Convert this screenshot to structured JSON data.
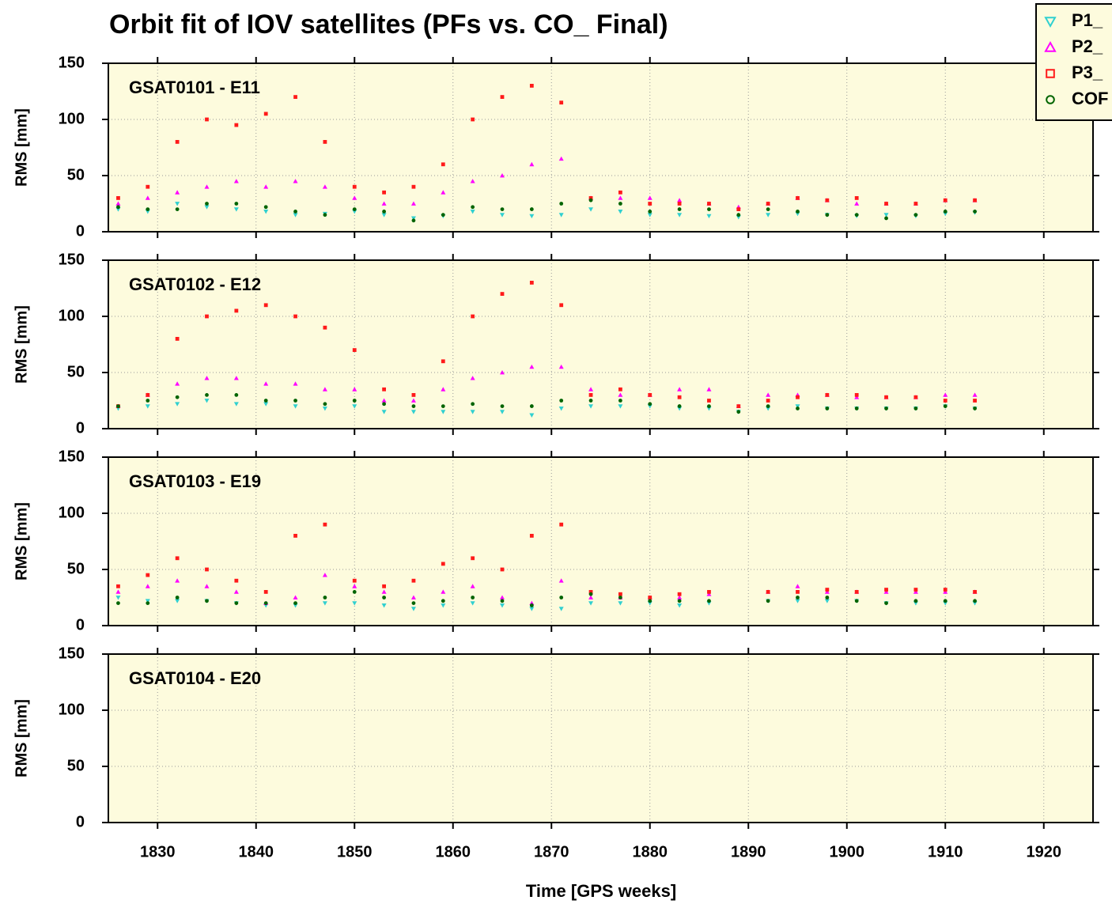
{
  "chart_data": [
    {
      "type": "scatter",
      "title": "Orbit fit of IOV satellites (PFs vs. CO_ Final)",
      "annotation": "GSAT0101 - E11",
      "ylabel": "RMS [mm]",
      "legend": "upper right",
      "grid": true,
      "xlim": [
        1825,
        1925
      ],
      "ylim": [
        0,
        150
      ],
      "xticks": [
        1830,
        1840,
        1850,
        1860,
        1870,
        1880,
        1890,
        1900,
        1910,
        1920
      ],
      "yticks": [
        0,
        50,
        100,
        150
      ],
      "x": [
        1826,
        1829,
        1832,
        1835,
        1838,
        1841,
        1844,
        1847,
        1850,
        1853,
        1856,
        1859,
        1862,
        1865,
        1868,
        1871,
        1874,
        1877,
        1880,
        1883,
        1886,
        1889,
        1892,
        1895,
        1898,
        1901,
        1904,
        1907,
        1910,
        1913
      ],
      "series": [
        {
          "name": "P1_",
          "color": "#30d0d0",
          "marker": "triangle-down",
          "values": [
            20,
            18,
            25,
            22,
            20,
            18,
            15,
            16,
            18,
            15,
            12,
            14,
            18,
            15,
            14,
            15,
            20,
            18,
            15,
            15,
            14,
            13,
            15,
            16,
            15,
            14,
            15,
            14,
            16,
            17
          ]
        },
        {
          "name": "P2_",
          "color": "#ff00ff",
          "marker": "triangle-up",
          "values": [
            25,
            30,
            35,
            40,
            45,
            40,
            45,
            40,
            30,
            25,
            25,
            35,
            45,
            50,
            60,
            65,
            30,
            30,
            30,
            28,
            25,
            22,
            25,
            30,
            28,
            25,
            25,
            25,
            28,
            28
          ]
        },
        {
          "name": "P3_",
          "color": "#ff1a1a",
          "marker": "square",
          "values": [
            30,
            40,
            80,
            100,
            95,
            105,
            120,
            80,
            40,
            35,
            40,
            60,
            100,
            120,
            130,
            115,
            30,
            35,
            25,
            25,
            25,
            20,
            25,
            30,
            28,
            30,
            25,
            25,
            28,
            28
          ]
        },
        {
          "name": "COF",
          "color": "#006400",
          "marker": "circle",
          "values": [
            22,
            20,
            20,
            25,
            25,
            22,
            18,
            15,
            20,
            18,
            10,
            15,
            22,
            20,
            20,
            25,
            28,
            25,
            18,
            20,
            20,
            15,
            20,
            18,
            15,
            15,
            12,
            15,
            18,
            18
          ]
        }
      ]
    },
    {
      "type": "scatter",
      "annotation": "GSAT0102 - E12",
      "ylabel": "RMS [mm]",
      "grid": true,
      "xlim": [
        1825,
        1925
      ],
      "ylim": [
        0,
        150
      ],
      "xticks": [
        1830,
        1840,
        1850,
        1860,
        1870,
        1880,
        1890,
        1900,
        1910,
        1920
      ],
      "yticks": [
        0,
        50,
        100,
        150
      ],
      "x": [
        1826,
        1829,
        1832,
        1835,
        1838,
        1841,
        1844,
        1847,
        1850,
        1853,
        1856,
        1859,
        1862,
        1865,
        1868,
        1871,
        1874,
        1877,
        1880,
        1883,
        1886,
        1889,
        1892,
        1895,
        1898,
        1901,
        1904,
        1907,
        1910,
        1913
      ],
      "series": [
        {
          "color": "#30d0d0",
          "marker": "triangle-down",
          "values": [
            18,
            20,
            22,
            25,
            22,
            22,
            20,
            18,
            20,
            15,
            15,
            15,
            15,
            15,
            12,
            18,
            20,
            20,
            20,
            18,
            18,
            15,
            18,
            20,
            18,
            18,
            18,
            18,
            20,
            18
          ]
        },
        {
          "color": "#ff00ff",
          "marker": "triangle-up",
          "values": [
            20,
            30,
            40,
            45,
            45,
            40,
            40,
            35,
            35,
            25,
            25,
            35,
            45,
            50,
            55,
            55,
            35,
            30,
            30,
            35,
            35,
            20,
            30,
            30,
            30,
            28,
            28,
            28,
            30,
            30
          ]
        },
        {
          "color": "#ff1a1a",
          "marker": "square",
          "values": [
            20,
            30,
            80,
            100,
            105,
            110,
            100,
            90,
            70,
            35,
            30,
            60,
            100,
            120,
            130,
            110,
            30,
            35,
            30,
            28,
            25,
            20,
            25,
            28,
            30,
            30,
            28,
            28,
            25,
            25
          ]
        },
        {
          "color": "#006400",
          "marker": "circle",
          "values": [
            20,
            25,
            28,
            30,
            30,
            25,
            25,
            22,
            25,
            22,
            20,
            20,
            22,
            20,
            20,
            25,
            25,
            25,
            22,
            20,
            20,
            15,
            20,
            18,
            18,
            18,
            18,
            18,
            20,
            18
          ]
        }
      ]
    },
    {
      "type": "scatter",
      "annotation": "GSAT0103 - E19",
      "ylabel": "RMS [mm]",
      "grid": true,
      "xlim": [
        1825,
        1925
      ],
      "ylim": [
        0,
        150
      ],
      "xticks": [
        1830,
        1840,
        1850,
        1860,
        1870,
        1880,
        1890,
        1900,
        1910,
        1920
      ],
      "yticks": [
        0,
        50,
        100,
        150
      ],
      "x": [
        1826,
        1829,
        1832,
        1835,
        1838,
        1841,
        1844,
        1847,
        1850,
        1853,
        1856,
        1859,
        1862,
        1865,
        1868,
        1871,
        1874,
        1877,
        1880,
        1883,
        1886,
        1889,
        1892,
        1895,
        1898,
        1901,
        1904,
        1907,
        1910,
        1913
      ],
      "series": [
        {
          "color": "#30d0d0",
          "marker": "triangle-down",
          "values": [
            25,
            22,
            22,
            22,
            20,
            18,
            18,
            20,
            20,
            18,
            15,
            18,
            20,
            18,
            15,
            15,
            20,
            20,
            20,
            18,
            20,
            null,
            22,
            22,
            22,
            22,
            20,
            20,
            20,
            20
          ]
        },
        {
          "color": "#ff00ff",
          "marker": "triangle-up",
          "values": [
            30,
            35,
            40,
            35,
            30,
            20,
            25,
            45,
            35,
            30,
            25,
            30,
            35,
            25,
            20,
            40,
            25,
            25,
            25,
            25,
            28,
            null,
            30,
            35,
            30,
            30,
            30,
            30,
            30,
            30
          ]
        },
        {
          "color": "#ff1a1a",
          "marker": "square",
          "values": [
            35,
            45,
            60,
            50,
            40,
            30,
            80,
            90,
            40,
            35,
            40,
            55,
            60,
            50,
            80,
            90,
            30,
            28,
            25,
            28,
            30,
            null,
            30,
            30,
            32,
            30,
            32,
            32,
            32,
            30
          ]
        },
        {
          "color": "#006400",
          "marker": "circle",
          "values": [
            20,
            20,
            25,
            22,
            20,
            20,
            20,
            25,
            30,
            25,
            20,
            22,
            25,
            22,
            18,
            25,
            28,
            25,
            22,
            22,
            22,
            null,
            22,
            25,
            25,
            22,
            20,
            22,
            22,
            22
          ]
        }
      ]
    },
    {
      "type": "scatter",
      "annotation": "GSAT0104 - E20",
      "ylabel": "RMS [mm]",
      "xlabel": "Time [GPS weeks]",
      "grid": true,
      "xlim": [
        1825,
        1925
      ],
      "ylim": [
        0,
        150
      ],
      "xticks": [
        1830,
        1840,
        1850,
        1860,
        1870,
        1880,
        1890,
        1900,
        1910,
        1920
      ],
      "yticks": [
        0,
        50,
        100,
        150
      ],
      "x": [],
      "series": []
    }
  ]
}
